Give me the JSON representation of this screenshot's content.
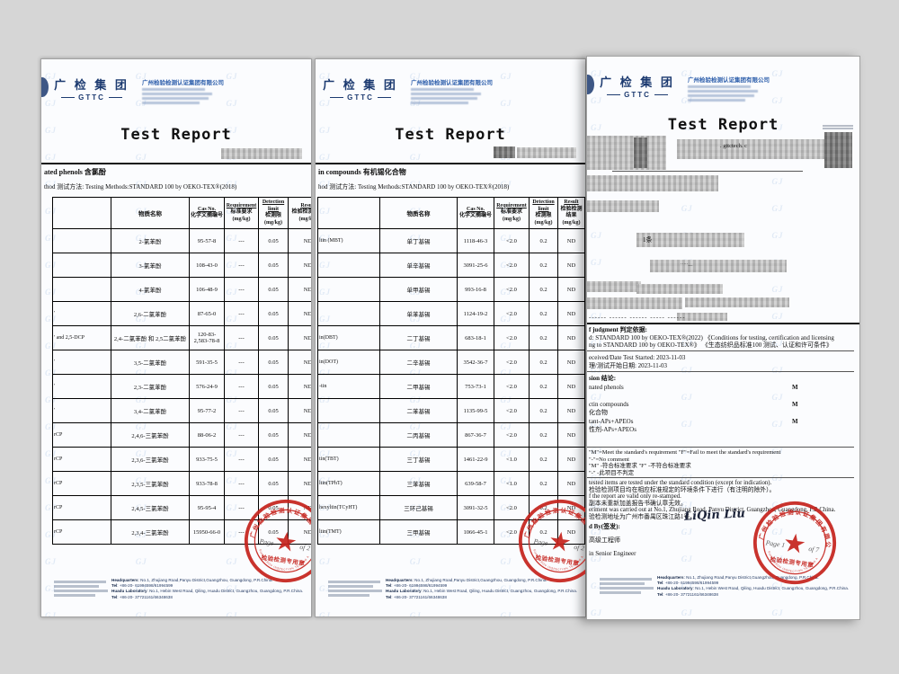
{
  "brand": {
    "logo_cn": "广 检 集 团",
    "logo_en": "GTTC",
    "company_cn": "广州检验检测认证集团有限公司"
  },
  "title": "Test Report",
  "table_header": {
    "name": "物质名称",
    "cas1": "Cas No.",
    "cas2": "化学文摘编号",
    "req1": "Requirement",
    "req2": "标准要求",
    "det1": "Detection",
    "det2": "limit",
    "det3": "检测限",
    "res1": "Result",
    "res2": "检验检测结果",
    "unit": "(mg/kg)"
  },
  "pages": [
    {
      "analyte": "ated phenols 含氯酚",
      "method": "thod 测试方法: Testing Methods:STANDARD 100 by OEKO-TEX®(2018)",
      "rows": [
        [
          "",
          "2-氯苯酚",
          "95-57-8",
          "---",
          "0.05",
          "ND"
        ],
        [
          "",
          "3-氯苯酚",
          "108-43-0",
          "---",
          "0.05",
          "ND"
        ],
        [
          "",
          "4-氯苯酚",
          "106-48-9",
          "---",
          "0.05",
          "ND"
        ],
        [
          "'",
          "2,6-二氯苯酚",
          "87-65-0",
          "---",
          "0.05",
          "ND"
        ],
        [
          "' and 2,5-DCP",
          "2,4-二氯苯酚 和 2,5二氯苯酚",
          "120-83-2,583-78-8",
          "---",
          "0.05",
          "ND"
        ],
        [
          "'",
          "3,5-二氯苯酚",
          "591-35-5",
          "---",
          "0.05",
          "ND"
        ],
        [
          "'",
          "2,3-二氯苯酚",
          "576-24-9",
          "---",
          "0.05",
          "ND"
        ],
        [
          "'",
          "3,4-二氯苯酚",
          "95-77-2",
          "---",
          "0.05",
          "ND"
        ],
        [
          "rCP",
          "2,4,6-三氯苯酚",
          "88-06-2",
          "---",
          "0.05",
          "ND"
        ],
        [
          "rCP",
          "2,3,6-三氯苯酚",
          "933-75-5",
          "---",
          "0.05",
          "ND"
        ],
        [
          "rCP",
          "2,3,5-三氯苯酚",
          "933-78-8",
          "---",
          "0.05",
          "ND"
        ],
        [
          "rCP",
          "2,4,5-三氯苯酚",
          "95-95-4",
          "---",
          "0.05",
          "ND"
        ],
        [
          "rCP",
          "2,3,4-三氯苯酚",
          "15950-66-0",
          "---",
          "0.05",
          "ND"
        ]
      ],
      "stamp_left": "Page",
      "stamp_right": "of 2"
    },
    {
      "analyte": "in compounds 有机锡化合物",
      "method": "hod 测试方法: Testing Methods:STANDARD 100 by OEKO-TEX®(2018)",
      "rows": [
        [
          "ltin (MBT)",
          "单丁基锡",
          "1118-46-3",
          "<2.0",
          "0.2",
          "ND"
        ],
        [
          "",
          "单辛基锡",
          "3091-25-6",
          "<2.0",
          "0.2",
          "ND"
        ],
        [
          "",
          "单甲基锡",
          "993-16-8",
          "<2.0",
          "0.2",
          "ND"
        ],
        [
          "",
          "单苯基锡",
          "1124-19-2",
          "<2.0",
          "0.2",
          "ND"
        ],
        [
          "in(DBT)",
          "二丁基锡",
          "683-18-1",
          "<2.0",
          "0.2",
          "ND"
        ],
        [
          "in(DOT)",
          "二辛基锡",
          "3542-36-7",
          "<2.0",
          "0.2",
          "ND"
        ],
        [
          "-tin",
          "二甲基锡",
          "753-73-1",
          "<2.0",
          "0.2",
          "ND"
        ],
        [
          "",
          "二苯基锡",
          "1135-99-5",
          "<2.0",
          "0.2",
          "ND"
        ],
        [
          "",
          "二丙基锡",
          "867-36-7",
          "<2.0",
          "0.2",
          "ND"
        ],
        [
          "tin(TBT)",
          "三丁基锡",
          "1461-22-9",
          "<1.0",
          "0.2",
          "ND"
        ],
        [
          "ltin(TPhT)",
          "三苯基锡",
          "639-58-7",
          "<1.0",
          "0.2",
          "ND"
        ],
        [
          "hexyltin(TCyHT)",
          "三环己基锡",
          "3091-32-5",
          "<2.0",
          "0.2",
          "ND"
        ],
        [
          "ltin(TMT)",
          "三甲基锡",
          "1066-45-1",
          "<2.0",
          "0.2",
          "ND"
        ]
      ],
      "stamp_left": "Page",
      "stamp_right": "of 2"
    }
  ],
  "page3": {
    "fragment_web": ". gttctech. c",
    "fragment_qty": "1条",
    "fragment_dots": "·····__",
    "dashes": "------ ------ ------ ----- ------",
    "judgment_title": "f judgment 判定依据:",
    "judgment_lines": [
      "d: STANDARD 100 by OEKO-TEX®(2022)  《Conditions for testing, certification and licensing",
      "ng to STANDARD 100 by OEKO-TEX®》 《生态纺织品标准100 测试、认证和许可条件》"
    ],
    "received_en": "eceived/Date Test Started: 2023-11-03",
    "received_cn": "理/测试开始日期: 2023-11-03",
    "conclusion_title": "sion 结论:",
    "conclusion_rows": [
      {
        "label": "nated phenols",
        "mark": "M"
      },
      {
        "label": "ctin compounds",
        "mark": "M"
      },
      {
        "label": "化合物",
        "mark": ""
      },
      {
        "label": "tant-APs+APEOs",
        "mark": "M"
      },
      {
        "label": "性剂-APs+APEOs",
        "mark": ""
      }
    ],
    "notes": [
      "\"M\"=Meet the standard's requirement  \"F\"=Fail to meet the standard's requirement",
      "\"-\"=No comment",
      "\"M\" -符合标准要求  \"F\" -不符合标准要求",
      "\"-\" -此项目不判定"
    ],
    "remarks": [
      "tested items are tested under the standard condition (except for indication).",
      "检验检测项目均在相应标准规定的环境条件下进行（有注明的除外）。",
      "f the report are valid only re-stamped.",
      "副本未重新加盖报告书确认章无效。",
      "eriment was carried out at No.1, Zhujiang Road, Panyu District, Guangzhou, Guangdong, P.R.China.",
      "验检测地址为广州市番禺区珠江路1号。"
    ],
    "issued_label": "d By(签发):",
    "signature": "LiQin Liu",
    "signer_title_cn": "高级工程师",
    "signer_title_en": "in Senior Engineer",
    "stamp_left": "Page 1",
    "stamp_right": "of 7"
  },
  "stamp": {
    "ring_cn": "广州检验检测认证集团有限公司",
    "ring_en": "GUANGZHOU INSPECTION TESTING AND CERTIFICATION GROUP CO.,LTD",
    "banner": "检验检测专用章",
    "star": "★"
  },
  "footer": {
    "hq_label": "Headquarters",
    "hq_text": ": No.1, Zhujiang Road,Panyu District,Guangzhou, Guangdong, P.R.China.",
    "tel1_label": "Tel",
    "tel1_text": ": +86-20- 61994598/61994599",
    "lab_label": "Huadu Laboratory",
    "lab_text": ": No.1, Hebin West Road, Qiling, Huadu District, Guangzhou, Guangdong, P.R.China.",
    "tel2_label": "Tel",
    "tel2_text": ": +86-20- 37721161/66348638"
  }
}
